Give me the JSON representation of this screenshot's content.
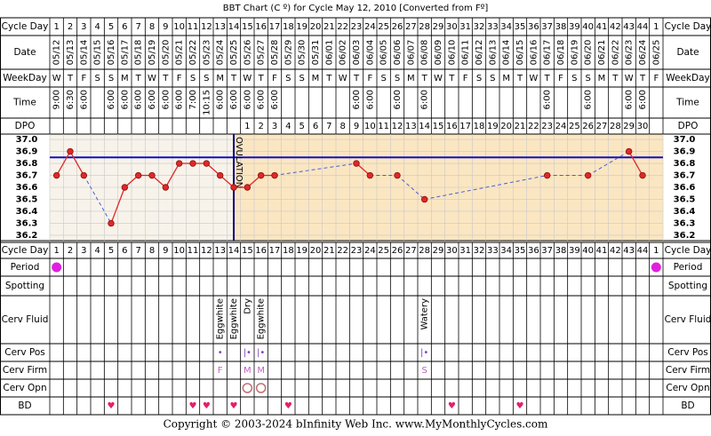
{
  "chart_data": {
    "type": "line",
    "title": "BBT Chart (C º) for Cycle May 12, 2010  [Converted from Fº]",
    "footer": "Copyright © 2003-2024 bInfinity Web Inc.    www.MyMonthlyCycles.com",
    "row_labels": {
      "cycle_day": "Cycle Day",
      "date": "Date",
      "weekday": "WeekDay",
      "time": "Time",
      "dpo": "DPO",
      "period": "Period",
      "spotting": "Spotting",
      "cerv_fluid": "Cerv Fluid",
      "cerv_pos": "Cerv Pos",
      "cerv_firm": "Cerv Firm",
      "cerv_opn": "Cerv Opn",
      "bd": "BD"
    },
    "categories": [
      1,
      2,
      3,
      4,
      5,
      6,
      7,
      8,
      9,
      10,
      11,
      12,
      13,
      14,
      15,
      16,
      17,
      18,
      19,
      20,
      21,
      22,
      23,
      24,
      25,
      26,
      27,
      28,
      29,
      30,
      31,
      32,
      33,
      34,
      35,
      36,
      37,
      38,
      39,
      40,
      41,
      42,
      43,
      44,
      1
    ],
    "dates": [
      "05/12",
      "05/13",
      "05/14",
      "05/15",
      "05/16",
      "05/17",
      "05/18",
      "05/19",
      "05/20",
      "05/21",
      "05/22",
      "05/23",
      "05/24",
      "05/25",
      "05/26",
      "05/27",
      "05/28",
      "05/29",
      "05/30",
      "05/31",
      "06/01",
      "06/02",
      "06/03",
      "06/04",
      "06/05",
      "06/06",
      "06/07",
      "06/08",
      "06/09",
      "06/10",
      "06/11",
      "06/12",
      "06/13",
      "06/14",
      "06/15",
      "06/16",
      "06/17",
      "06/18",
      "06/19",
      "06/20",
      "06/21",
      "06/22",
      "06/23",
      "06/24",
      "06/25"
    ],
    "weekdays": [
      "W",
      "T",
      "F",
      "S",
      "S",
      "M",
      "T",
      "W",
      "T",
      "F",
      "S",
      "S",
      "M",
      "T",
      "W",
      "T",
      "F",
      "S",
      "S",
      "M",
      "T",
      "W",
      "T",
      "F",
      "S",
      "S",
      "M",
      "T",
      "W",
      "T",
      "F",
      "S",
      "S",
      "M",
      "T",
      "W",
      "T",
      "F",
      "S",
      "S",
      "M",
      "T",
      "W",
      "T",
      "F"
    ],
    "times": [
      "9:00",
      "6:30",
      "6:00",
      null,
      "6:00",
      "6:00",
      "6:00",
      "6:00",
      "6:00",
      "6:00",
      "7:00",
      "10:15",
      "6:00",
      "6:00",
      "6:00",
      "6:00",
      "6:00",
      null,
      null,
      null,
      null,
      null,
      "6:00",
      "6:00",
      null,
      "6:00",
      null,
      "6:00",
      null,
      null,
      null,
      null,
      null,
      null,
      null,
      null,
      "6:00",
      null,
      null,
      "6:00",
      null,
      null,
      "6:00",
      "6:00",
      null
    ],
    "dpo": [
      null,
      null,
      null,
      null,
      null,
      null,
      null,
      null,
      null,
      null,
      null,
      null,
      null,
      null,
      1,
      2,
      3,
      4,
      5,
      6,
      7,
      8,
      9,
      10,
      11,
      12,
      13,
      14,
      15,
      16,
      17,
      18,
      19,
      20,
      21,
      22,
      23,
      24,
      25,
      26,
      27,
      28,
      29,
      30,
      null
    ],
    "values": [
      36.7,
      36.9,
      36.7,
      null,
      36.3,
      36.6,
      36.7,
      36.7,
      36.6,
      36.8,
      36.8,
      36.8,
      36.7,
      36.6,
      36.6,
      36.7,
      36.7,
      null,
      null,
      null,
      null,
      null,
      36.8,
      36.7,
      null,
      36.7,
      null,
      36.5,
      null,
      null,
      null,
      null,
      null,
      null,
      null,
      null,
      36.7,
      null,
      null,
      36.7,
      null,
      null,
      36.9,
      36.7,
      null
    ],
    "color": "#e02828",
    "gap_color": "#4a5fd0",
    "ylim": [
      36.155,
      37.045
    ],
    "yticks": [
      {
        "value": 37,
        "label": "37.0"
      },
      36.9,
      36.8,
      36.7,
      36.6,
      36.5,
      36.4,
      36.3,
      36.2
    ],
    "coverline": 36.85,
    "ovulation": {
      "label": "OVULATION",
      "day": 14
    },
    "period": [
      true,
      null,
      null,
      null,
      null,
      null,
      null,
      null,
      null,
      null,
      null,
      null,
      null,
      null,
      null,
      null,
      null,
      null,
      null,
      null,
      null,
      null,
      null,
      null,
      null,
      null,
      null,
      null,
      null,
      null,
      null,
      null,
      null,
      null,
      null,
      null,
      null,
      null,
      null,
      null,
      null,
      null,
      null,
      null,
      true
    ],
    "cerv_fluid": [
      null,
      null,
      null,
      null,
      null,
      null,
      null,
      null,
      null,
      null,
      null,
      null,
      "Eggwhite",
      "Eggwhite",
      "Dry",
      "Eggwhite",
      null,
      null,
      null,
      null,
      null,
      null,
      null,
      null,
      null,
      null,
      null,
      "Watery",
      null,
      null,
      null,
      null,
      null,
      null,
      null,
      null,
      null,
      null,
      null,
      null,
      null,
      null,
      null,
      null,
      null
    ],
    "cerv_pos": [
      null,
      null,
      null,
      null,
      null,
      null,
      null,
      null,
      null,
      null,
      null,
      null,
      "•",
      null,
      "|•",
      "|•",
      null,
      null,
      null,
      null,
      null,
      null,
      null,
      null,
      null,
      null,
      null,
      "|•",
      null,
      null,
      null,
      null,
      null,
      null,
      null,
      null,
      null,
      null,
      null,
      null,
      null,
      null,
      null,
      null,
      null
    ],
    "cerv_firm": [
      null,
      null,
      null,
      null,
      null,
      null,
      null,
      null,
      null,
      null,
      null,
      null,
      "F",
      null,
      "M",
      "M",
      null,
      null,
      null,
      null,
      null,
      null,
      null,
      null,
      null,
      null,
      null,
      "S",
      null,
      null,
      null,
      null,
      null,
      null,
      null,
      null,
      null,
      null,
      null,
      null,
      null,
      null,
      null,
      null,
      null
    ],
    "cerv_opn": [
      null,
      null,
      null,
      null,
      null,
      null,
      null,
      null,
      null,
      null,
      null,
      null,
      null,
      null,
      true,
      true,
      null,
      null,
      null,
      null,
      null,
      null,
      null,
      null,
      null,
      null,
      null,
      null,
      null,
      null,
      null,
      null,
      null,
      null,
      null,
      null,
      null,
      null,
      null,
      null,
      null,
      null,
      null,
      null,
      null
    ],
    "bd": [
      null,
      null,
      null,
      null,
      "♥",
      null,
      null,
      null,
      null,
      null,
      "♥",
      "♥",
      null,
      "♥",
      null,
      null,
      null,
      "♥",
      null,
      null,
      null,
      null,
      null,
      null,
      null,
      null,
      null,
      null,
      null,
      "♥",
      null,
      null,
      null,
      null,
      "♥",
      null,
      null,
      null,
      null,
      null,
      null,
      null,
      null,
      null,
      null
    ]
  }
}
